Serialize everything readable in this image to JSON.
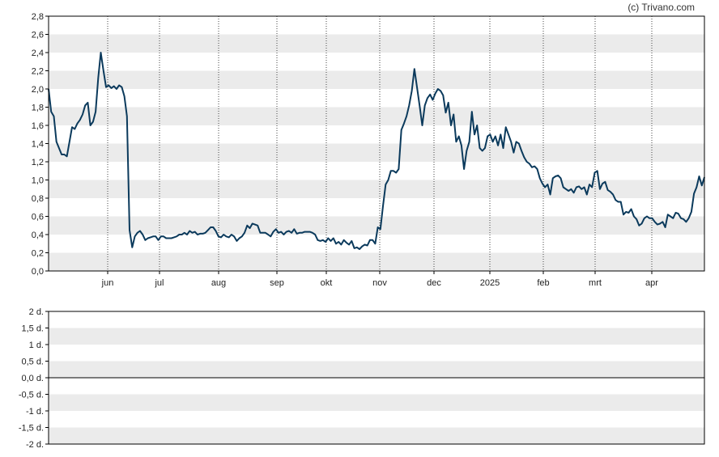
{
  "copyright": "(c) Trivano.com",
  "colors": {
    "band": "#ebebeb",
    "line": "#0b3a5c",
    "frame": "#000000",
    "vgrid": "#444444"
  },
  "chart_data": [
    {
      "type": "line",
      "ylim": [
        0,
        2.8
      ],
      "yticks": [
        "0,0",
        "0,2",
        "0,4",
        "0,6",
        "0,8",
        "1,0",
        "1,2",
        "1,4",
        "1,6",
        "1,8",
        "2,0",
        "2,2",
        "2,4",
        "2,6",
        "2,8"
      ],
      "xticks": [
        "jun",
        "jul",
        "aug",
        "sep",
        "okt",
        "nov",
        "dec",
        "2025",
        "feb",
        "mrt",
        "apr"
      ],
      "grid": "alternating horizontal bands, dotted vertical lines at month starts",
      "series": [
        {
          "values": [
            2.0,
            1.75,
            1.7,
            1.42,
            1.35,
            1.28,
            1.28,
            1.26,
            1.42,
            1.58,
            1.56,
            1.62,
            1.66,
            1.72,
            1.82,
            1.85,
            1.6,
            1.64,
            1.75,
            2.12,
            2.4,
            2.2,
            2.02,
            2.04,
            2.01,
            2.03,
            2.0,
            2.04,
            2.02,
            1.92,
            1.7,
            0.45,
            0.26,
            0.38,
            0.42,
            0.44,
            0.4,
            0.34,
            0.36,
            0.37,
            0.38,
            0.38,
            0.34,
            0.38,
            0.38,
            0.36,
            0.36,
            0.36,
            0.37,
            0.38,
            0.4,
            0.4,
            0.42,
            0.4,
            0.44,
            0.42,
            0.43,
            0.4,
            0.41,
            0.41,
            0.42,
            0.45,
            0.48,
            0.48,
            0.44,
            0.38,
            0.37,
            0.4,
            0.38,
            0.37,
            0.4,
            0.38,
            0.33,
            0.36,
            0.38,
            0.42,
            0.5,
            0.47,
            0.52,
            0.51,
            0.5,
            0.42,
            0.42,
            0.42,
            0.4,
            0.38,
            0.43,
            0.46,
            0.42,
            0.43,
            0.4,
            0.43,
            0.44,
            0.42,
            0.46,
            0.41,
            0.42,
            0.42,
            0.43,
            0.43,
            0.43,
            0.42,
            0.4,
            0.34,
            0.33,
            0.34,
            0.32,
            0.36,
            0.33,
            0.36,
            0.3,
            0.32,
            0.29,
            0.34,
            0.31,
            0.29,
            0.33,
            0.25,
            0.26,
            0.24,
            0.27,
            0.29,
            0.28,
            0.34,
            0.34,
            0.3,
            0.48,
            0.46,
            0.72,
            0.95,
            1.0,
            1.1,
            1.1,
            1.08,
            1.12,
            1.55,
            1.62,
            1.7,
            1.82,
            1.98,
            2.22,
            2.02,
            1.82,
            1.6,
            1.82,
            1.9,
            1.94,
            1.88,
            1.95,
            2.0,
            1.98,
            1.93,
            1.74,
            1.85,
            1.6,
            1.72,
            1.42,
            1.48,
            1.38,
            1.12,
            1.32,
            1.42,
            1.75,
            1.5,
            1.6,
            1.35,
            1.32,
            1.35,
            1.48,
            1.5,
            1.42,
            1.48,
            1.38,
            1.5,
            1.35,
            1.58,
            1.5,
            1.42,
            1.3,
            1.42,
            1.4,
            1.32,
            1.25,
            1.2,
            1.18,
            1.14,
            1.15,
            1.12,
            1.02,
            0.96,
            0.92,
            0.95,
            0.84,
            1.02,
            1.04,
            1.05,
            1.02,
            0.92,
            0.9,
            0.88,
            0.9,
            0.86,
            0.92,
            0.93,
            0.9,
            0.92,
            0.84,
            0.95,
            0.92,
            1.08,
            1.1,
            0.9,
            0.96,
            0.98,
            0.89,
            0.87,
            0.84,
            0.78,
            0.76,
            0.76,
            0.62,
            0.65,
            0.64,
            0.68,
            0.6,
            0.57,
            0.5,
            0.52,
            0.58,
            0.6,
            0.58,
            0.58,
            0.54,
            0.51,
            0.52,
            0.54,
            0.48,
            0.62,
            0.6,
            0.58,
            0.64,
            0.63,
            0.58,
            0.57,
            0.54,
            0.58,
            0.65,
            0.85,
            0.92,
            1.04,
            0.94,
            1.03
          ]
        }
      ]
    },
    {
      "type": "line",
      "ylim": [
        -2,
        2
      ],
      "yticks": [
        "-2 d.",
        "-1,5 d.",
        "-1 d.",
        "-0,5 d.",
        "0,0 d.",
        "0,5 d.",
        "1 d.",
        "1,5 d.",
        "2 d."
      ],
      "grid": "alternating horizontal bands",
      "series": []
    }
  ]
}
